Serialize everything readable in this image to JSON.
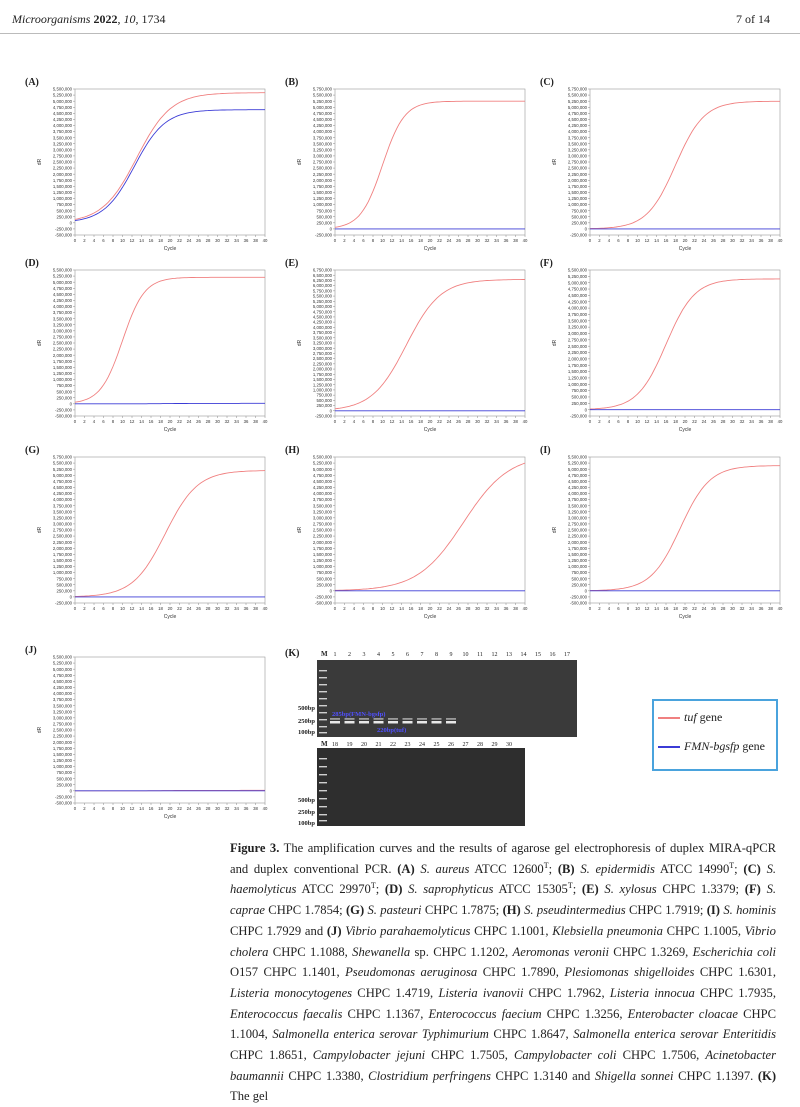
{
  "header": {
    "journal": "Microorganisms",
    "year": "2022",
    "volume": "10",
    "article": "1734",
    "page": "7 of 14"
  },
  "colors": {
    "tuf": "#f08080",
    "fmn": "#3b3bd6",
    "legend_border": "#4aa3dd"
  },
  "axis": {
    "ylabel": "dR",
    "xlabel": "Cycle"
  },
  "panels": [
    {
      "label": "(A)",
      "xticks": [
        0,
        2,
        4,
        6,
        8,
        10,
        12,
        14,
        16,
        18,
        20,
        22,
        24,
        26,
        28,
        30,
        32,
        34,
        36,
        38,
        40
      ],
      "yticks": [
        "5,500,000",
        "5,250,000",
        "5,000,000",
        "4,750,000",
        "4,500,000",
        "4,250,000",
        "4,000,000",
        "3,750,000",
        "3,500,000",
        "3,250,000",
        "3,000,000",
        "2,750,000",
        "2,500,000",
        "2,250,000",
        "2,000,000",
        "1,750,000",
        "1,500,000",
        "1,250,000",
        "1,000,000",
        "750,000",
        "500,000",
        "250,000",
        "0",
        "-250,000",
        "-500,000"
      ]
    },
    {
      "label": "(B)",
      "xticks": [
        0,
        2,
        4,
        6,
        8,
        10,
        12,
        14,
        16,
        18,
        20,
        22,
        24,
        26,
        28,
        30,
        32,
        34,
        36,
        38,
        40
      ],
      "yticks": [
        "5,750,000",
        "5,500,000",
        "5,250,000",
        "5,000,000",
        "4,750,000",
        "4,500,000",
        "4,250,000",
        "4,000,000",
        "3,750,000",
        "3,500,000",
        "3,250,000",
        "3,000,000",
        "2,750,000",
        "2,500,000",
        "2,250,000",
        "2,000,000",
        "1,750,000",
        "1,500,000",
        "1,250,000",
        "1,000,000",
        "750,000",
        "500,000",
        "250,000",
        "0",
        "-250,000"
      ]
    },
    {
      "label": "(C)",
      "xticks": [
        0,
        2,
        4,
        6,
        8,
        10,
        12,
        14,
        16,
        18,
        20,
        22,
        24,
        26,
        28,
        30,
        32,
        34,
        36,
        38,
        40
      ],
      "yticks": [
        "5,750,000",
        "5,500,000",
        "5,250,000",
        "5,000,000",
        "4,750,000",
        "4,500,000",
        "4,250,000",
        "4,000,000",
        "3,750,000",
        "3,500,000",
        "3,250,000",
        "3,000,000",
        "2,750,000",
        "2,500,000",
        "2,250,000",
        "2,000,000",
        "1,750,000",
        "1,500,000",
        "1,250,000",
        "1,000,000",
        "750,000",
        "500,000",
        "250,000",
        "0",
        "-250,000"
      ]
    },
    {
      "label": "(D)",
      "xticks": [
        0,
        2,
        4,
        6,
        8,
        10,
        12,
        14,
        16,
        18,
        20,
        22,
        24,
        26,
        28,
        30,
        32,
        34,
        36,
        38,
        40
      ],
      "yticks": [
        "5,500,000",
        "5,250,000",
        "5,000,000",
        "4,750,000",
        "4,500,000",
        "4,250,000",
        "4,000,000",
        "3,750,000",
        "3,500,000",
        "3,250,000",
        "3,000,000",
        "2,750,000",
        "2,500,000",
        "2,250,000",
        "2,000,000",
        "1,750,000",
        "1,500,000",
        "1,250,000",
        "1,000,000",
        "750,000",
        "500,000",
        "250,000",
        "0",
        "-250,000",
        "-500,000"
      ]
    },
    {
      "label": "(E)",
      "xticks": [
        0,
        2,
        4,
        6,
        8,
        10,
        12,
        14,
        16,
        18,
        20,
        22,
        24,
        26,
        28,
        30,
        32,
        34,
        36,
        38,
        40
      ],
      "yticks": [
        "6,750,000",
        "6,500,000",
        "6,250,000",
        "6,000,000",
        "5,750,000",
        "5,500,000",
        "5,250,000",
        "5,000,000",
        "4,750,000",
        "4,500,000",
        "4,250,000",
        "4,000,000",
        "3,750,000",
        "3,500,000",
        "3,250,000",
        "3,000,000",
        "2,750,000",
        "2,500,000",
        "2,250,000",
        "2,000,000",
        "1,750,000",
        "1,500,000",
        "1,250,000",
        "1,000,000",
        "750,000",
        "500,000",
        "250,000",
        "0",
        "-250,000"
      ]
    },
    {
      "label": "(F)",
      "xticks": [
        0,
        2,
        4,
        6,
        8,
        10,
        12,
        14,
        16,
        18,
        20,
        22,
        24,
        26,
        28,
        30,
        32,
        34,
        36,
        38,
        40
      ],
      "yticks": [
        "5,500,000",
        "5,250,000",
        "5,000,000",
        "4,750,000",
        "4,500,000",
        "4,250,000",
        "4,000,000",
        "3,750,000",
        "3,500,000",
        "3,250,000",
        "3,000,000",
        "2,750,000",
        "2,500,000",
        "2,250,000",
        "2,000,000",
        "1,750,000",
        "1,500,000",
        "1,250,000",
        "1,000,000",
        "750,000",
        "500,000",
        "250,000",
        "0",
        "-250,000"
      ]
    },
    {
      "label": "(G)",
      "xticks": [
        0,
        2,
        4,
        6,
        8,
        10,
        12,
        14,
        16,
        18,
        20,
        22,
        24,
        26,
        28,
        30,
        32,
        34,
        36,
        38,
        40
      ],
      "yticks": [
        "5,750,000",
        "5,500,000",
        "5,250,000",
        "5,000,000",
        "4,750,000",
        "4,500,000",
        "4,250,000",
        "4,000,000",
        "3,750,000",
        "3,500,000",
        "3,250,000",
        "3,000,000",
        "2,750,000",
        "2,500,000",
        "2,250,000",
        "2,000,000",
        "1,750,000",
        "1,500,000",
        "1,250,000",
        "1,000,000",
        "750,000",
        "500,000",
        "250,000",
        "0",
        "-250,000"
      ]
    },
    {
      "label": "(H)",
      "xticks": [
        0,
        2,
        4,
        6,
        8,
        10,
        12,
        14,
        16,
        18,
        20,
        22,
        24,
        26,
        28,
        30,
        32,
        34,
        36,
        38,
        40
      ],
      "yticks": [
        "5,500,000",
        "5,250,000",
        "5,000,000",
        "4,750,000",
        "4,500,000",
        "4,250,000",
        "4,000,000",
        "3,750,000",
        "3,500,000",
        "3,250,000",
        "3,000,000",
        "2,750,000",
        "2,500,000",
        "2,250,000",
        "2,000,000",
        "1,750,000",
        "1,500,000",
        "1,250,000",
        "1,000,000",
        "750,000",
        "500,000",
        "250,000",
        "0",
        "-250,000",
        "-500,000"
      ]
    },
    {
      "label": "(I)",
      "xticks": [
        0,
        2,
        4,
        6,
        8,
        10,
        12,
        14,
        16,
        18,
        20,
        22,
        24,
        26,
        28,
        30,
        32,
        34,
        36,
        38,
        40
      ],
      "yticks": [
        "5,500,000",
        "5,250,000",
        "5,000,000",
        "4,750,000",
        "4,500,000",
        "4,250,000",
        "4,000,000",
        "3,750,000",
        "3,500,000",
        "3,250,000",
        "3,000,000",
        "2,750,000",
        "2,500,000",
        "2,250,000",
        "2,000,000",
        "1,750,000",
        "1,500,000",
        "1,250,000",
        "1,000,000",
        "750,000",
        "500,000",
        "250,000",
        "0",
        "-250,000",
        "-500,000"
      ]
    },
    {
      "label": "(J)",
      "xticks": [
        0,
        2,
        4,
        6,
        8,
        10,
        12,
        14,
        16,
        18,
        20,
        22,
        24,
        26,
        28,
        30,
        32,
        34,
        36,
        38,
        40
      ],
      "yticks": [
        "5,500,000",
        "5,250,000",
        "5,000,000",
        "4,750,000",
        "4,500,000",
        "4,250,000",
        "4,000,000",
        "3,750,000",
        "3,500,000",
        "3,250,000",
        "3,000,000",
        "2,750,000",
        "2,500,000",
        "2,250,000",
        "2,000,000",
        "1,750,000",
        "1,500,000",
        "1,250,000",
        "1,000,000",
        "750,000",
        "500,000",
        "250,000",
        "0",
        "-250,000",
        "-500,000"
      ]
    }
  ],
  "chart_data": [
    {
      "type": "line",
      "panel": "(A)",
      "xlabel": "Cycle",
      "ylabel": "dR",
      "xlim": [
        0,
        40
      ],
      "ylim": [
        -500000,
        5500000
      ],
      "series": [
        {
          "plateau": 5350000,
          "midpoint": 13,
          "slope": 3.6,
          "color": "#f08080"
        },
        {
          "plateau": 4650000,
          "midpoint": 12.5,
          "slope": 3.2,
          "color": "#3b3bd6"
        }
      ]
    },
    {
      "type": "line",
      "panel": "(B)",
      "xlabel": "Cycle",
      "ylabel": "dR",
      "xlim": [
        0,
        40
      ],
      "ylim": [
        -250000,
        5750000
      ],
      "series": [
        {
          "plateau": 5250000,
          "midpoint": 10,
          "slope": 2.3,
          "color": "#f08080"
        },
        {
          "plateau": 0,
          "midpoint": 20,
          "slope": 3,
          "color": "#3b3bd6"
        }
      ]
    },
    {
      "type": "line",
      "panel": "(C)",
      "xlabel": "Cycle",
      "ylabel": "dR",
      "xlim": [
        0,
        40
      ],
      "ylim": [
        -250000,
        5750000
      ],
      "series": [
        {
          "plateau": 5250000,
          "midpoint": 18,
          "slope": 3,
          "color": "#f08080"
        },
        {
          "plateau": 0,
          "midpoint": 20,
          "slope": 3,
          "color": "#3b3bd6"
        }
      ]
    },
    {
      "type": "line",
      "panel": "(D)",
      "xlabel": "Cycle",
      "ylabel": "dR",
      "xlim": [
        0,
        40
      ],
      "ylim": [
        -500000,
        5500000
      ],
      "series": [
        {
          "plateau": 5200000,
          "midpoint": 10,
          "slope": 2.3,
          "color": "#f08080"
        },
        {
          "plateau": 20000,
          "midpoint": 20,
          "slope": 3,
          "color": "#3b3bd6"
        }
      ]
    },
    {
      "type": "line",
      "panel": "(E)",
      "xlabel": "Cycle",
      "ylabel": "dR",
      "xlim": [
        0,
        40
      ],
      "ylim": [
        -250000,
        6750000
      ],
      "series": [
        {
          "plateau": 6300000,
          "midpoint": 15,
          "slope": 3.6,
          "color": "#f08080"
        },
        {
          "plateau": 0,
          "midpoint": 20,
          "slope": 3,
          "color": "#3b3bd6"
        }
      ]
    },
    {
      "type": "line",
      "panel": "(F)",
      "xlabel": "Cycle",
      "ylabel": "dR",
      "xlim": [
        0,
        40
      ],
      "ylim": [
        -250000,
        5500000
      ],
      "series": [
        {
          "plateau": 5150000,
          "midpoint": 16,
          "slope": 3,
          "color": "#f08080"
        },
        {
          "plateau": 0,
          "midpoint": 20,
          "slope": 3,
          "color": "#3b3bd6"
        }
      ]
    },
    {
      "type": "line",
      "panel": "(G)",
      "xlabel": "Cycle",
      "ylabel": "dR",
      "xlim": [
        0,
        40
      ],
      "ylim": [
        -250000,
        5750000
      ],
      "series": [
        {
          "plateau": 5200000,
          "midpoint": 19,
          "slope": 3.4,
          "color": "#f08080"
        },
        {
          "plateau": 0,
          "midpoint": 20,
          "slope": 3,
          "color": "#3b3bd6"
        }
      ]
    },
    {
      "type": "line",
      "panel": "(H)",
      "xlabel": "Cycle",
      "ylabel": "dR",
      "xlim": [
        0,
        40
      ],
      "ylim": [
        -500000,
        5500000
      ],
      "series": [
        {
          "plateau": 5600000,
          "midpoint": 27,
          "slope": 4.8,
          "color": "#f08080"
        },
        {
          "plateau": 0,
          "midpoint": 20,
          "slope": 3,
          "color": "#3b3bd6"
        }
      ]
    },
    {
      "type": "line",
      "panel": "(I)",
      "xlabel": "Cycle",
      "ylabel": "dR",
      "xlim": [
        0,
        40
      ],
      "ylim": [
        -500000,
        5500000
      ],
      "series": [
        {
          "plateau": 5150000,
          "midpoint": 19,
          "slope": 3.1,
          "color": "#f08080"
        },
        {
          "plateau": 0,
          "midpoint": 20,
          "slope": 3,
          "color": "#3b3bd6"
        }
      ]
    },
    {
      "type": "line",
      "panel": "(J)",
      "xlabel": "Cycle",
      "ylabel": "dR",
      "xlim": [
        0,
        40
      ],
      "ylim": [
        -500000,
        5500000
      ],
      "series": [
        {
          "plateau": 20000,
          "midpoint": 20,
          "slope": 3,
          "color": "#f08080"
        },
        {
          "plateau": 0,
          "midpoint": 20,
          "slope": 3,
          "color": "#3b3bd6"
        }
      ]
    }
  ],
  "gel": {
    "label": "(K)",
    "marker_label": "M",
    "top_lanes": [
      "1",
      "2",
      "3",
      "4",
      "5",
      "6",
      "7",
      "8",
      "9",
      "10",
      "11",
      "12",
      "13",
      "14",
      "15",
      "16",
      "17"
    ],
    "bottom_lanes": [
      "18",
      "19",
      "20",
      "21",
      "22",
      "23",
      "24",
      "25",
      "26",
      "27",
      "28",
      "29",
      "30"
    ],
    "ladder_labels": [
      "500bp",
      "250bp",
      "100bp"
    ],
    "band_label_fmn": "285bp(FMN-bgsfp)",
    "band_label_tuf": "220bp(tuf)"
  },
  "legend": {
    "items": [
      {
        "name": "tuf",
        "suffix": " gene",
        "color": "#f08080"
      },
      {
        "name": "FMN-bgsfp",
        "suffix": " gene",
        "color": "#3b3bd6"
      }
    ]
  },
  "caption": {
    "label": "Figure 3.",
    "segments": [
      {
        "t": "The amplification curves and the results of agarose gel electrophoresis of duplex MIRA-qPCR and duplex conventional PCR. "
      },
      {
        "t": "(A)",
        "s": "b"
      },
      {
        "t": " "
      },
      {
        "t": "S. aureus",
        "s": "i"
      },
      {
        "t": " ATCC 12600"
      },
      {
        "t": "T",
        "s": "sup"
      },
      {
        "t": "; "
      },
      {
        "t": "(B)",
        "s": "b"
      },
      {
        "t": " "
      },
      {
        "t": "S. epidermidis",
        "s": "i"
      },
      {
        "t": " ATCC 14990"
      },
      {
        "t": "T",
        "s": "sup"
      },
      {
        "t": "; "
      },
      {
        "t": "(C)",
        "s": "b"
      },
      {
        "t": " "
      },
      {
        "t": "S. haemolyticus",
        "s": "i"
      },
      {
        "t": " ATCC 29970"
      },
      {
        "t": "T",
        "s": "sup"
      },
      {
        "t": "; "
      },
      {
        "t": "(D)",
        "s": "b"
      },
      {
        "t": " "
      },
      {
        "t": "S. saprophyticus",
        "s": "i"
      },
      {
        "t": " ATCC 15305"
      },
      {
        "t": "T",
        "s": "sup"
      },
      {
        "t": "; "
      },
      {
        "t": "(E)",
        "s": "b"
      },
      {
        "t": " "
      },
      {
        "t": "S. xylosus",
        "s": "i"
      },
      {
        "t": " CHPC 1.3379; "
      },
      {
        "t": "(F)",
        "s": "b"
      },
      {
        "t": " "
      },
      {
        "t": "S. caprae",
        "s": "i"
      },
      {
        "t": " CHPC 1.7854; "
      },
      {
        "t": "(G)",
        "s": "b"
      },
      {
        "t": " "
      },
      {
        "t": "S. pasteuri",
        "s": "i"
      },
      {
        "t": " CHPC 1.7875; "
      },
      {
        "t": "(H)",
        "s": "b"
      },
      {
        "t": " "
      },
      {
        "t": "S. pseudintermedius",
        "s": "i"
      },
      {
        "t": " CHPC 1.7919; "
      },
      {
        "t": "(I)",
        "s": "b"
      },
      {
        "t": " "
      },
      {
        "t": "S. hominis",
        "s": "i"
      },
      {
        "t": " CHPC 1.7929 and "
      },
      {
        "t": "(J)",
        "s": "b"
      },
      {
        "t": " "
      },
      {
        "t": "Vibrio parahaemolyticus",
        "s": "i"
      },
      {
        "t": " CHPC 1.1001, "
      },
      {
        "t": "Klebsiella pneumonia",
        "s": "i"
      },
      {
        "t": " CHPC 1.1005, "
      },
      {
        "t": "Vibrio cholera",
        "s": "i"
      },
      {
        "t": " CHPC 1.1088, "
      },
      {
        "t": "Shewanella",
        "s": "i"
      },
      {
        "t": " sp. CHPC 1.1202, "
      },
      {
        "t": "Aeromonas veronii",
        "s": "i"
      },
      {
        "t": " CHPC 1.3269, "
      },
      {
        "t": "Escherichia coli",
        "s": "i"
      },
      {
        "t": " O157 CHPC 1.1401, "
      },
      {
        "t": "Pseudomonas aeruginosa",
        "s": "i"
      },
      {
        "t": " CHPC 1.7890, "
      },
      {
        "t": "Plesiomonas shigelloides",
        "s": "i"
      },
      {
        "t": " CHPC 1.6301, "
      },
      {
        "t": "Listeria monocytogenes",
        "s": "i"
      },
      {
        "t": " CHPC 1.4719, "
      },
      {
        "t": "Listeria ivanovii",
        "s": "i"
      },
      {
        "t": " CHPC 1.7962, "
      },
      {
        "t": "Listeria innocua",
        "s": "i"
      },
      {
        "t": " CHPC 1.7935, "
      },
      {
        "t": "Enterococcus faecalis",
        "s": "i"
      },
      {
        "t": " CHPC 1.1367, "
      },
      {
        "t": "Enterococcus faecium",
        "s": "i"
      },
      {
        "t": " CHPC 1.3256, "
      },
      {
        "t": "Enterobacter cloacae",
        "s": "i"
      },
      {
        "t": " CHPC 1.1004, "
      },
      {
        "t": "Salmonella enterica serovar Typhimurium",
        "s": "i"
      },
      {
        "t": " CHPC 1.8647, "
      },
      {
        "t": "Salmonella enterica serovar Enteritidis",
        "s": "i"
      },
      {
        "t": " CHPC 1.8651, "
      },
      {
        "t": "Campylobacter jejuni",
        "s": "i"
      },
      {
        "t": " CHPC 1.7505, "
      },
      {
        "t": "Campylobacter coli",
        "s": "i"
      },
      {
        "t": " CHPC 1.7506, "
      },
      {
        "t": "Acinetobacter baumannii",
        "s": "i"
      },
      {
        "t": " CHPC 1.3380, "
      },
      {
        "t": "Clostridium perfringens",
        "s": "i"
      },
      {
        "t": " CHPC 1.3140 and "
      },
      {
        "t": "Shigella sonnei",
        "s": "i"
      },
      {
        "t": " CHPC 1.1397. "
      },
      {
        "t": "(K)",
        "s": "b"
      },
      {
        "t": " The gel"
      }
    ]
  }
}
